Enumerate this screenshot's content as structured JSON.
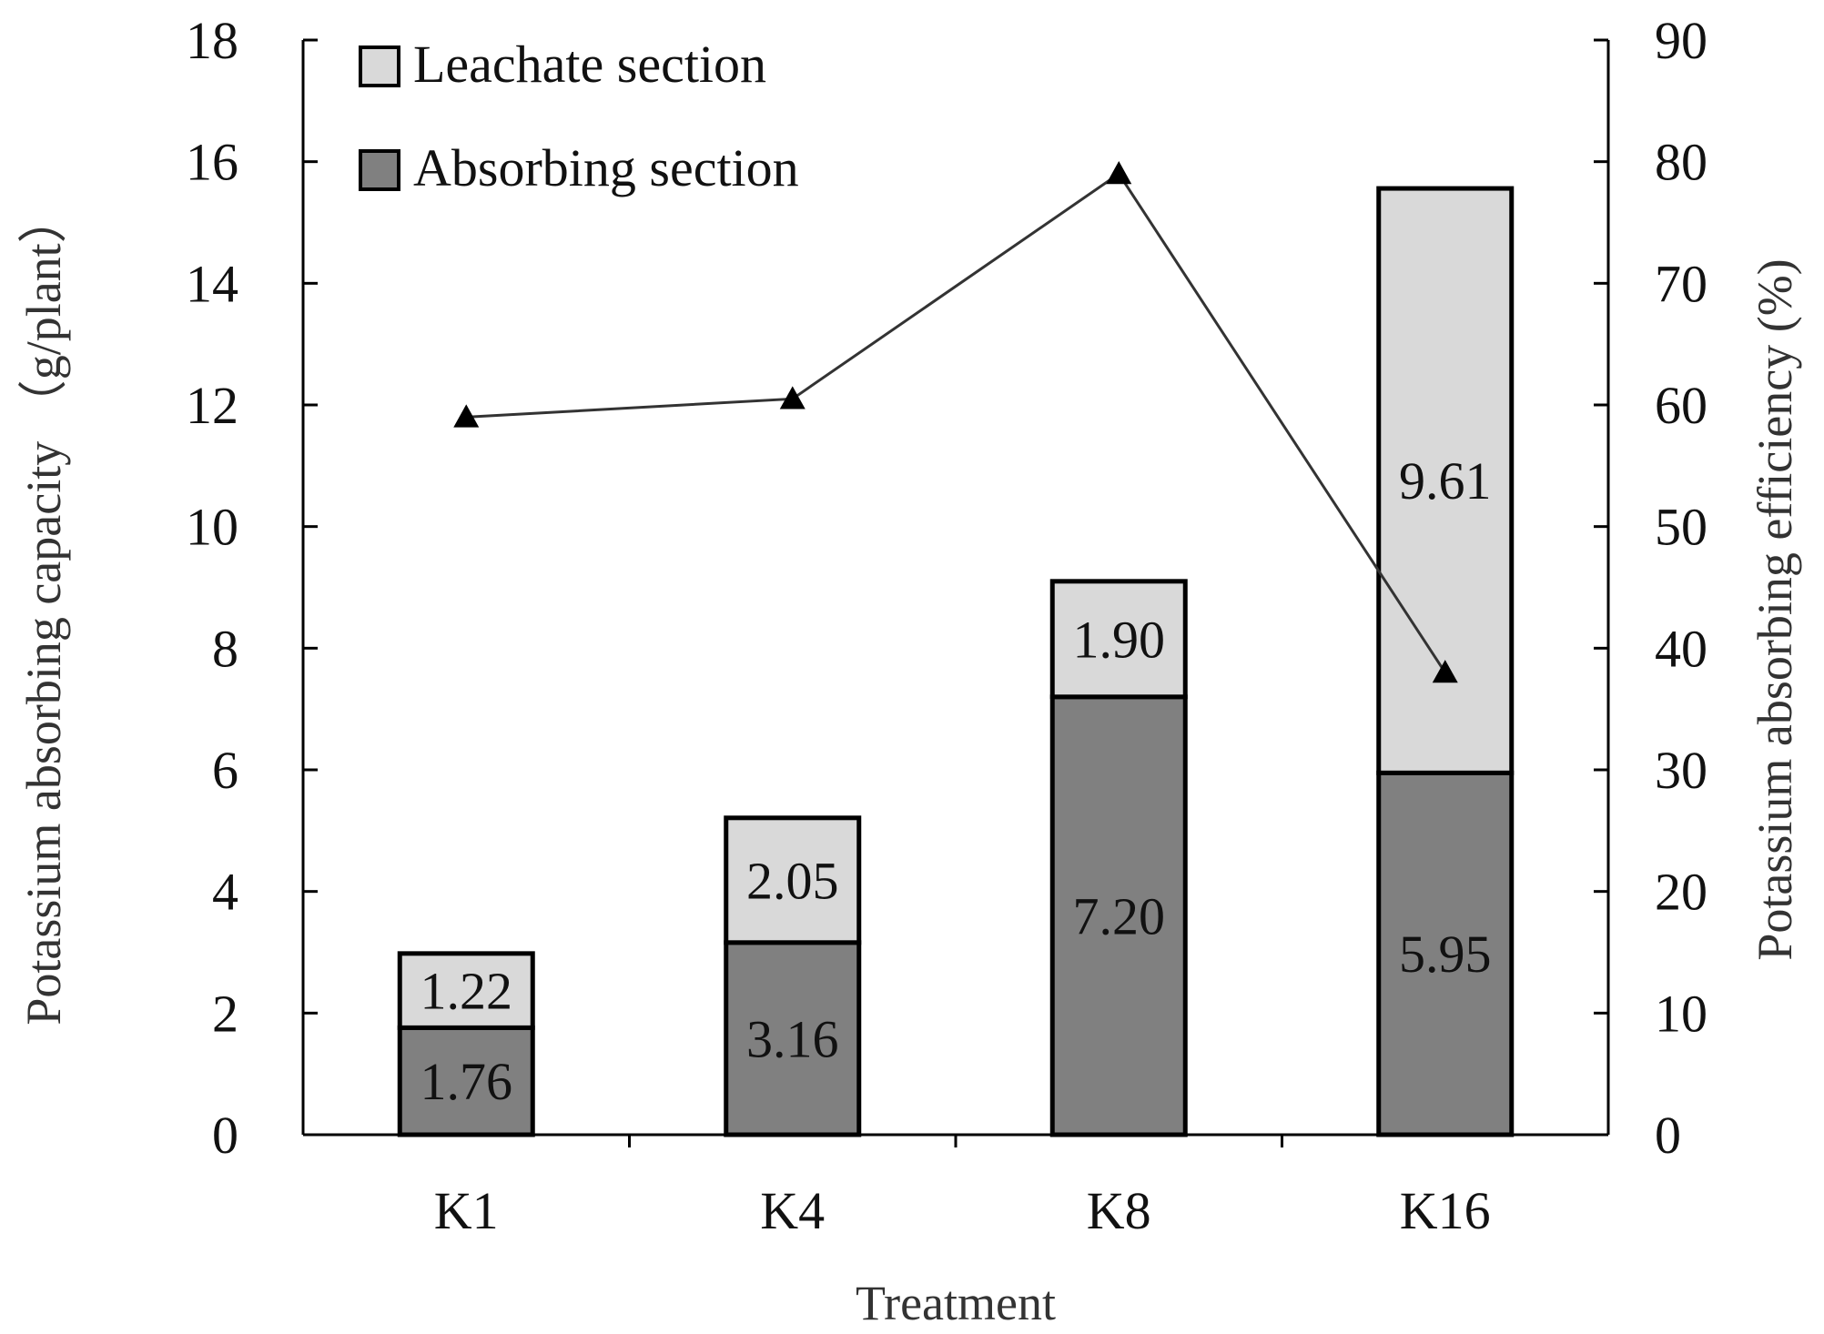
{
  "chart_data": {
    "type": "bar",
    "stacked": true,
    "categories": [
      "K1",
      "K4",
      "K8",
      "K16"
    ],
    "xlabel": "Treatment",
    "ylabel": "Potassium absorbing capacity （g/plant）",
    "ylabel_right": "Potassium absorbing efficiency (%)",
    "ylim": [
      0,
      18
    ],
    "y_ticks": [
      "0",
      "2",
      "4",
      "6",
      "8",
      "10",
      "12",
      "14",
      "16",
      "18"
    ],
    "ylim_right": [
      0,
      90
    ],
    "y_ticks_right": [
      "0",
      "10",
      "20",
      "30",
      "40",
      "50",
      "60",
      "70",
      "80",
      "90"
    ],
    "grid": false,
    "legend_position": "top-left",
    "series": [
      {
        "name": "Absorbing section",
        "color": "#808080",
        "values": [
          1.76,
          3.16,
          7.2,
          5.95
        ],
        "labels": [
          "1.76",
          "3.16",
          "7.20",
          "5.95"
        ]
      },
      {
        "name": "Leachate section",
        "color": "#d9d9d9",
        "values": [
          1.22,
          2.05,
          1.9,
          9.61
        ],
        "labels": [
          "1.22",
          "2.05",
          "1.90",
          "9.61"
        ]
      }
    ],
    "line_series": {
      "axis": "right",
      "marker": "triangle",
      "color": "#333333",
      "values": [
        59,
        60.5,
        79,
        38
      ]
    }
  }
}
